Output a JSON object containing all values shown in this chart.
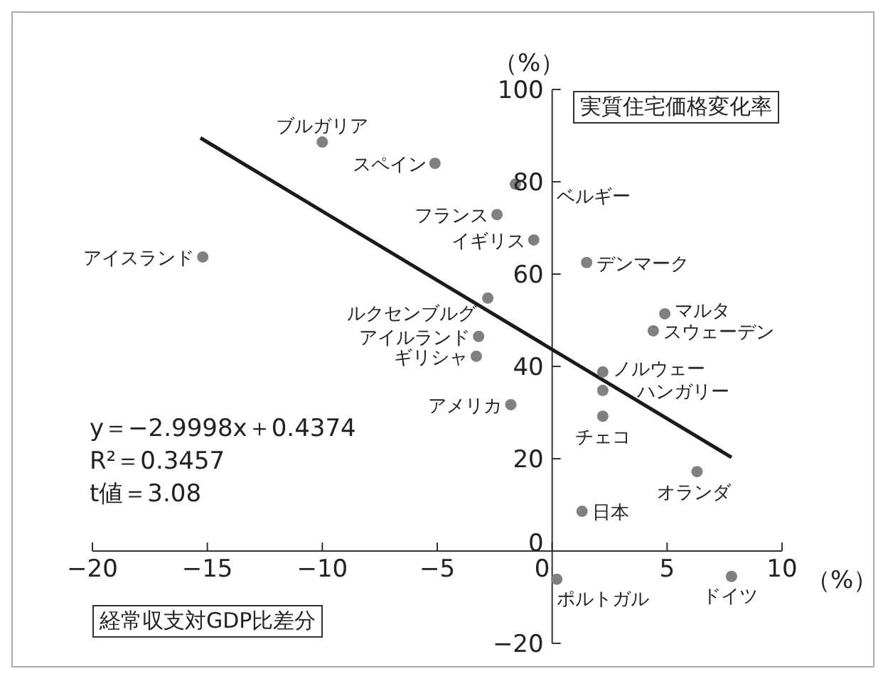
{
  "chart_data": {
    "type": "scatter",
    "xlabel": "経常収支対GDP比差分",
    "ylabel": "実質住宅価格変化率",
    "xlim": [
      -20,
      10
    ],
    "xticks": [
      -20,
      -15,
      -10,
      -5,
      0,
      5,
      10
    ],
    "ylim": [
      -20,
      100
    ],
    "yticks": [
      -20,
      0,
      20,
      40,
      60,
      80,
      100
    ],
    "marker": "circle",
    "annotations": [
      "（%）",
      "（%）",
      "y＝−2.9998x＋0.4374",
      "R²＝0.3457",
      "t値＝3.08"
    ],
    "series": [
      {
        "name": "ブルガリア",
        "color": "#808080",
        "x": [
          -10.0
        ],
        "values": [
          88.6
        ]
      },
      {
        "name": "スペイン",
        "color": "#808080",
        "x": [
          -5.1
        ],
        "values": [
          84.0
        ]
      },
      {
        "name": "ベルギー",
        "color": "#808080",
        "x": [
          -1.6
        ],
        "values": [
          79.5
        ]
      },
      {
        "name": "フランス",
        "color": "#808080",
        "x": [
          -2.4
        ],
        "values": [
          72.9
        ]
      },
      {
        "name": "イギリス",
        "color": "#808080",
        "x": [
          -0.8
        ],
        "values": [
          67.4
        ]
      },
      {
        "name": "アイスランド",
        "color": "#808080",
        "x": [
          -15.2
        ],
        "values": [
          63.7
        ]
      },
      {
        "name": "ルクセンブルグ",
        "color": "#808080",
        "x": [
          -2.8
        ],
        "values": [
          54.8
        ]
      },
      {
        "name": "アイルランド",
        "color": "#808080",
        "x": [
          -3.2
        ],
        "values": [
          46.5
        ]
      },
      {
        "name": "ギリシャ",
        "color": "#808080",
        "x": [
          -3.3
        ],
        "values": [
          42.2
        ]
      },
      {
        "name": "アメリカ",
        "color": "#808080",
        "x": [
          -1.8
        ],
        "values": [
          31.7
        ]
      },
      {
        "name": "デンマーク",
        "color": "#808080",
        "x": [
          1.5
        ],
        "values": [
          62.5
        ]
      },
      {
        "name": "マルタ",
        "color": "#808080",
        "x": [
          4.9
        ],
        "values": [
          51.4
        ]
      },
      {
        "name": "スウェーデン",
        "color": "#808080",
        "x": [
          4.4
        ],
        "values": [
          47.7
        ]
      },
      {
        "name": "ノルウェー",
        "color": "#808080",
        "x": [
          2.2
        ],
        "values": [
          38.8
        ]
      },
      {
        "name": "ハンガリー",
        "color": "#808080",
        "x": [
          2.2
        ],
        "values": [
          34.8
        ]
      },
      {
        "name": "チェコ",
        "color": "#808080",
        "x": [
          2.2
        ],
        "values": [
          29.2
        ]
      },
      {
        "name": "オランダ",
        "color": "#808080",
        "x": [
          6.3
        ],
        "values": [
          17.2
        ]
      },
      {
        "name": "日本",
        "color": "#808080",
        "x": [
          1.3
        ],
        "values": [
          8.6
        ]
      },
      {
        "name": "ポルトガル",
        "color": "#808080",
        "x": [
          0.2
        ],
        "values": [
          -6.1
        ]
      },
      {
        "name": "ドイツ",
        "color": "#808080",
        "x": [
          7.8
        ],
        "values": [
          -5.5
        ]
      },
      {
        "type": "line",
        "marker": "none",
        "color": "#1a1a1a",
        "x": [
          -15.3,
          7.8
        ],
        "values": [
          89.5,
          20.3
        ]
      }
    ]
  }
}
